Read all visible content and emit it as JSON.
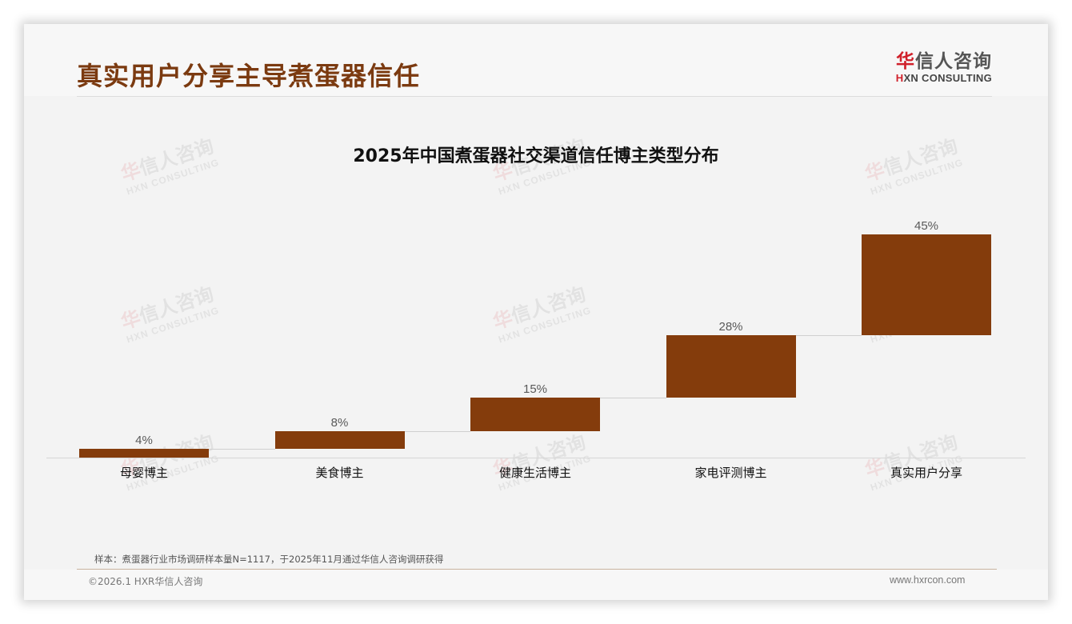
{
  "page": {
    "title": "真实用户分享主导煮蛋器信任",
    "logo": {
      "cn_prefix": "华",
      "cn_rest": "信人咨询",
      "en_prefix": "H",
      "en_rest": "XN CONSULTING"
    },
    "watermark": {
      "cn_prefix": "华",
      "cn_rest": "信人咨询",
      "en": "HXN CONSULTING"
    },
    "source_note": "样本：煮蛋器行业市场调研样本量N=1117，于2025年11月通过华信人咨询调研获得",
    "copyright": "©2026.1 HXR华信人咨询",
    "website": "www.hxrcon.com"
  },
  "chart_data": {
    "type": "bar",
    "subtype": "waterfall",
    "title": "2025年中国煮蛋器社交渠道信任博主类型分布",
    "categories": [
      "母婴博主",
      "美食博主",
      "健康生活博主",
      "家电评测博主",
      "真实用户分享"
    ],
    "values": [
      4,
      8,
      15,
      28,
      45
    ],
    "value_labels": [
      "4%",
      "8%",
      "15%",
      "28%",
      "45%"
    ],
    "unit": "%",
    "bar_color": "#843c0c",
    "xlabel": "",
    "ylabel": "",
    "grid": false,
    "legend": null
  }
}
